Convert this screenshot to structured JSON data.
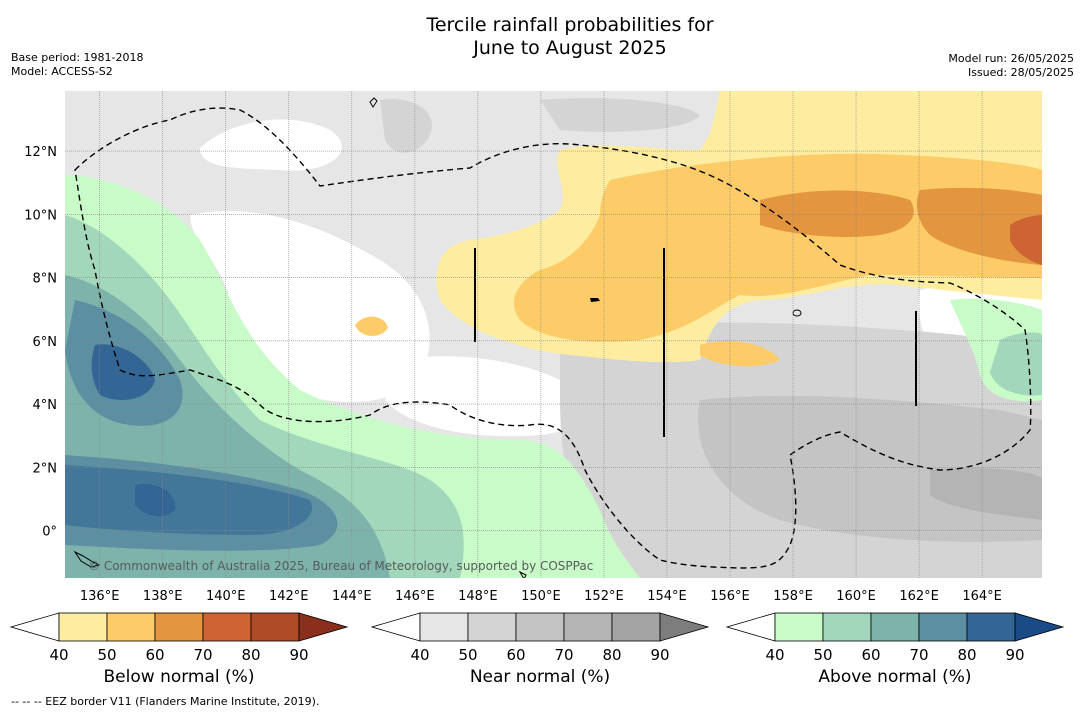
{
  "title_line1": "Tercile rainfall probabilities for",
  "title_line2": "June to August 2025",
  "base_period": "Base period: 1981-2018",
  "model": "Model: ACCESS-S2",
  "model_run": "Model run: 26/05/2025",
  "issued": "Issued: 28/05/2025",
  "copyright": "© Commonwealth of Australia 2025, Bureau of Meteorology, supported by COSPPac",
  "footnote": "--  --  -- EEZ border V11 (Flanders Marine Institute, 2019).",
  "map": {
    "lon_labels": [
      "136°E",
      "138°E",
      "140°E",
      "142°E",
      "144°E",
      "146°E",
      "148°E",
      "150°E",
      "152°E",
      "154°E",
      "156°E",
      "158°E",
      "160°E",
      "162°E",
      "164°E"
    ],
    "lat_labels": [
      "12°N",
      "10°N",
      "8°N",
      "6°N",
      "4°N",
      "2°N",
      "0°"
    ],
    "lon_range": [
      134.9,
      165.9
    ],
    "lat_range": [
      -1.5,
      13.9
    ]
  },
  "colorbars": [
    {
      "name": "below",
      "label": "Below normal (%)",
      "ticks": [
        "40",
        "50",
        "60",
        "70",
        "80",
        "90"
      ],
      "colors": [
        "#ffffff",
        "#feeda0",
        "#fdcc69",
        "#e3963f",
        "#cd6432",
        "#b04b27",
        "#8b2f1d"
      ]
    },
    {
      "name": "near",
      "label": "Near normal (%)",
      "ticks": [
        "40",
        "50",
        "60",
        "70",
        "80",
        "90"
      ],
      "colors": [
        "#ffffff",
        "#e6e6e6",
        "#d4d4d4",
        "#c4c4c4",
        "#b4b4b4",
        "#a4a4a4",
        "#7d7d7d"
      ]
    },
    {
      "name": "above",
      "label": "Above normal (%)",
      "ticks": [
        "40",
        "50",
        "60",
        "70",
        "80",
        "90"
      ],
      "colors": [
        "#ffffff",
        "#c8fbc8",
        "#a2d7bb",
        "#7eb3ab",
        "#5c8fa1",
        "#336694",
        "#1a4b87"
      ]
    }
  ]
}
